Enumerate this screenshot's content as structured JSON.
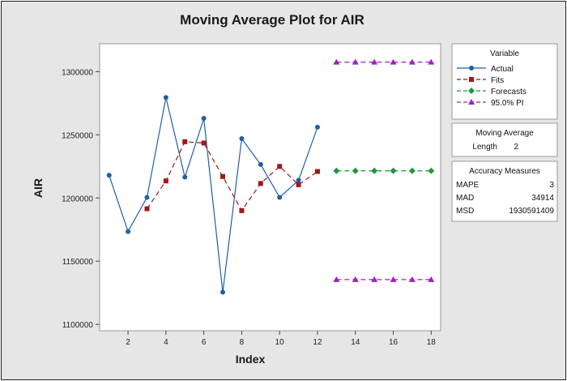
{
  "chart_data": {
    "type": "line",
    "title": "Moving Average Plot for AIR",
    "xlabel": "Index",
    "ylabel": "AIR",
    "xlim": [
      0.5,
      18.5
    ],
    "ylim": [
      1095000,
      1322000
    ],
    "xticks": [
      2,
      4,
      6,
      8,
      10,
      12,
      14,
      16,
      18
    ],
    "yticks": [
      1100000,
      1150000,
      1200000,
      1250000,
      1300000
    ],
    "grid": false,
    "legend_title": "Variable",
    "legend_position": "right",
    "series": [
      {
        "name": "Actual",
        "color": "#1f5fa8",
        "line_style": "solid",
        "marker": "circle",
        "x": [
          1,
          2,
          3,
          4,
          5,
          6,
          7,
          8,
          9,
          10,
          11,
          12
        ],
        "values": [
          1218000,
          1173500,
          1200500,
          1279500,
          1216500,
          1263000,
          1125500,
          1247000,
          1226500,
          1200500,
          1214000,
          1256000
        ]
      },
      {
        "name": "Fits",
        "color": "#a01818",
        "line_style": "dashed",
        "marker": "square",
        "x": [
          3,
          4,
          5,
          6,
          7,
          8,
          9,
          10,
          11,
          12
        ],
        "values": [
          1191500,
          1213500,
          1244500,
          1243500,
          1217000,
          1190000,
          1211500,
          1225000,
          1210500,
          1221000
        ]
      },
      {
        "name": "Forecasts",
        "color": "#1a9a38",
        "line_style": "dashed",
        "marker": "diamond",
        "x": [
          13,
          14,
          15,
          16,
          17,
          18
        ],
        "values": [
          1221500,
          1221500,
          1221500,
          1221500,
          1221500,
          1221500
        ]
      },
      {
        "name": "95.0% PI",
        "color": "#a020c0",
        "line_style": "dashed",
        "marker": "triangle",
        "x": [
          13,
          14,
          15,
          16,
          17,
          18
        ],
        "values": [
          1307500,
          1307500,
          1307500,
          1307500,
          1307500,
          1307500
        ],
        "lower_values": [
          1135500,
          1135500,
          1135500,
          1135500,
          1135500,
          1135500
        ]
      }
    ],
    "moving_average": {
      "title": "Moving Average",
      "length_label": "Length",
      "length_value": "2"
    },
    "accuracy_measures": {
      "title": "Accuracy Measures",
      "rows": [
        {
          "label": "MAPE",
          "value": "3"
        },
        {
          "label": "MAD",
          "value": "34914"
        },
        {
          "label": "MSD",
          "value": "1930591409"
        }
      ]
    }
  }
}
